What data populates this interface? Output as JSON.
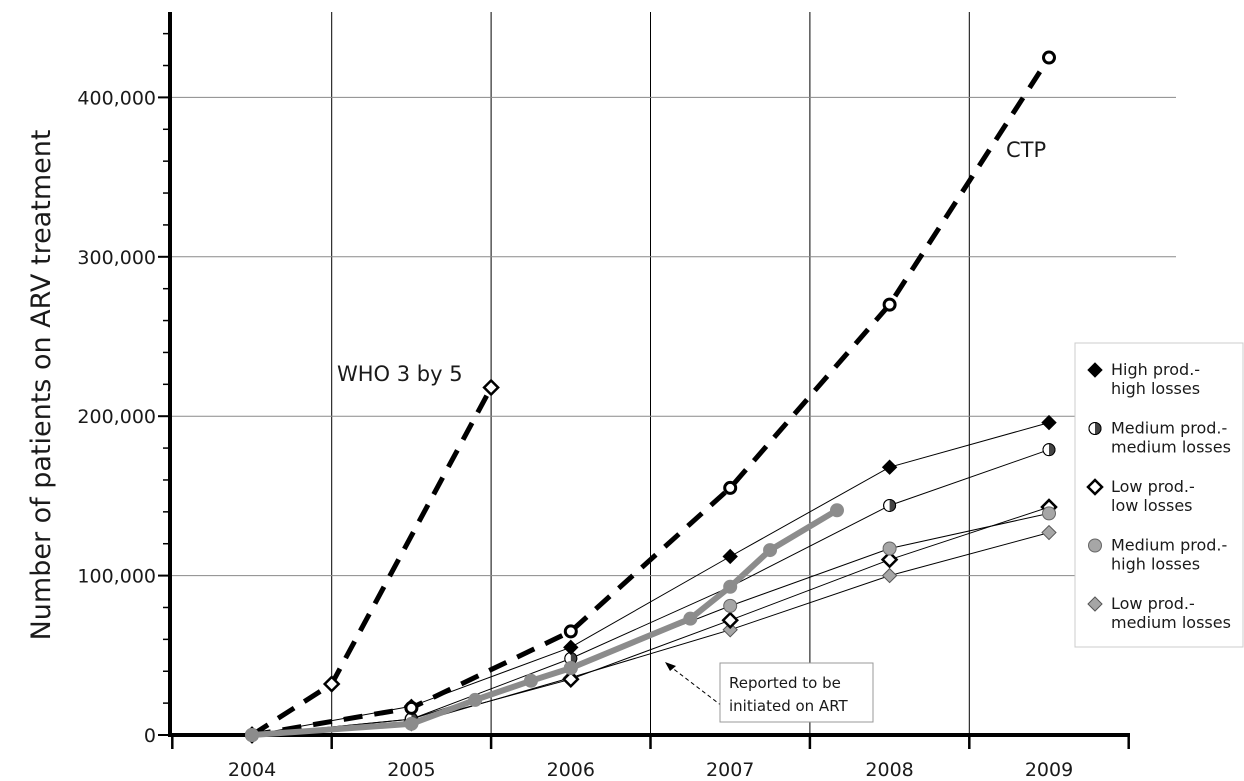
{
  "chart_data": {
    "type": "line",
    "ylabel": "Number of patients on ARV treatment",
    "xlabel": "",
    "xlim": [
      2003.5,
      2009.5
    ],
    "ylim": [
      0,
      450000
    ],
    "grid": true,
    "x_ticks": [
      "2004",
      "2005",
      "2006",
      "2007",
      "2008",
      "2009"
    ],
    "y_ticks": [
      "0",
      "100,000",
      "200,000",
      "300,000",
      "400,000"
    ],
    "series": [
      {
        "key": "who",
        "label": "WHO 3 by 5",
        "style": "dashed",
        "marker": "open-diamond",
        "x": [
          2004,
          2004.5,
          2005.5
        ],
        "y": [
          0,
          32000,
          218000
        ]
      },
      {
        "key": "ctp",
        "label": "CTP",
        "style": "dashed",
        "marker": "open-circle",
        "x": [
          2004,
          2005,
          2006,
          2007,
          2008,
          2009
        ],
        "y": [
          0,
          17000,
          65000,
          155000,
          270000,
          425000
        ]
      },
      {
        "key": "hh",
        "name": "High prod.- high losses",
        "marker": "filled-diamond",
        "x": [
          2004,
          2005,
          2006,
          2007,
          2008,
          2009
        ],
        "y": [
          0,
          18000,
          55000,
          112000,
          168000,
          196000
        ]
      },
      {
        "key": "mm",
        "name": "Medium prod.- medium losses",
        "marker": "half-circle",
        "x": [
          2004,
          2005,
          2006,
          2007,
          2008,
          2009
        ],
        "y": [
          0,
          10000,
          48000,
          93000,
          144000,
          179000
        ]
      },
      {
        "key": "ll",
        "name": "Low prod.- low losses",
        "marker": "open-diamond",
        "x": [
          2004,
          2005,
          2006,
          2007,
          2008,
          2009
        ],
        "y": [
          0,
          8000,
          35000,
          72000,
          110000,
          143000
        ]
      },
      {
        "key": "mh",
        "name": "Medium prod.- high losses",
        "marker": "gray-circle",
        "x": [
          2004,
          2005,
          2006,
          2007,
          2008,
          2009
        ],
        "y": [
          0,
          10000,
          42000,
          81000,
          117000,
          139000
        ]
      },
      {
        "key": "lm",
        "name": "Low prod.- medium losses",
        "marker": "gray-diamond",
        "x": [
          2004,
          2005,
          2006,
          2007,
          2008,
          2009
        ],
        "y": [
          0,
          7000,
          36000,
          66000,
          100000,
          127000
        ]
      },
      {
        "key": "rep",
        "label": "Reported to be initiated on ART",
        "marker": "thick-gray",
        "x": [
          2004,
          2005,
          2005.4,
          2005.75,
          2006,
          2006.75,
          2007,
          2007.25,
          2007.67
        ],
        "y": [
          0,
          7000,
          22000,
          34000,
          42000,
          73000,
          93000,
          116000,
          141000
        ]
      }
    ],
    "legend": {
      "position": "right",
      "items": [
        {
          "line1": "High prod.-",
          "line2": "high losses",
          "marker": "filled-diamond"
        },
        {
          "line1": "Medium prod.-",
          "line2": "medium losses",
          "marker": "half-circle"
        },
        {
          "line1": "Low prod.-",
          "line2": "low losses",
          "marker": "open-diamond"
        },
        {
          "line1": "Medium prod.-",
          "line2": "high losses",
          "marker": "gray-circle"
        },
        {
          "line1": "Low prod.-",
          "line2": "medium losses",
          "marker": "gray-diamond"
        }
      ]
    },
    "annotations": {
      "who": "WHO 3 by 5",
      "ctp": "CTP",
      "reported_line1": "Reported to be",
      "reported_line2": "initiated on ART"
    },
    "colors": {
      "ink": "#000000",
      "grid": "#8a8a8a",
      "gray": "#a6a6a6",
      "reported": "#8c8c8c"
    }
  }
}
